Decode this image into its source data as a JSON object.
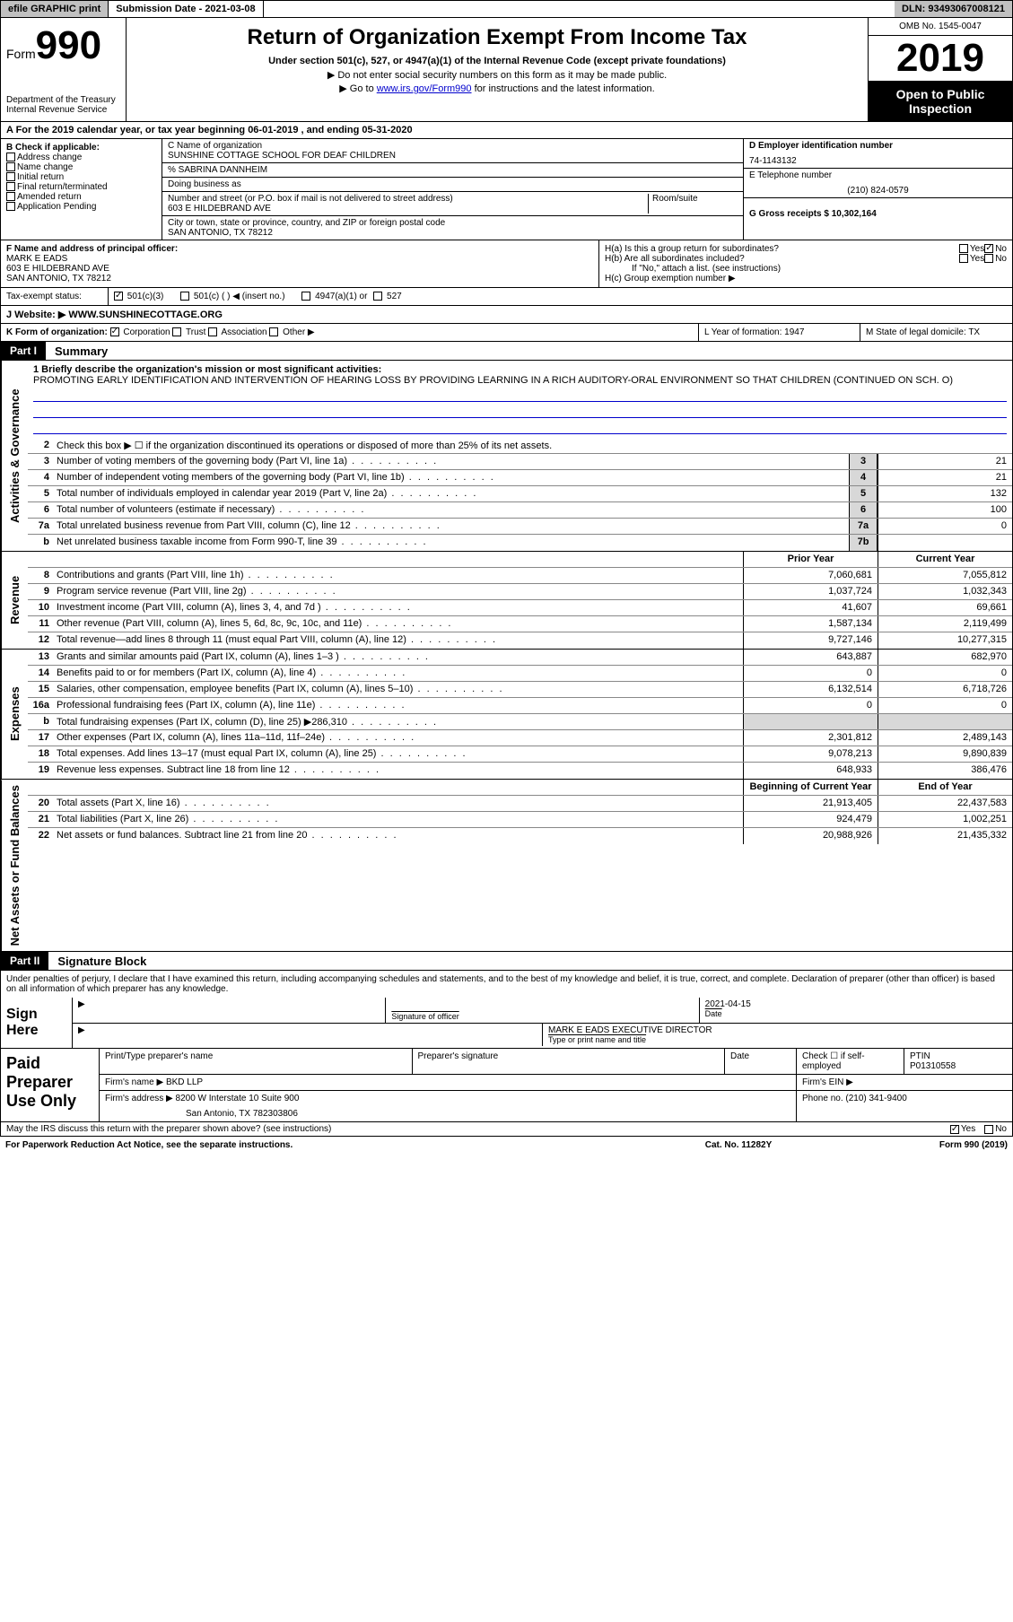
{
  "topbar": {
    "efile": "efile GRAPHIC print",
    "subdate_label": "Submission Date - 2021-03-08",
    "dln": "DLN: 93493067008121"
  },
  "header": {
    "form_prefix": "Form",
    "form_num": "990",
    "dept": "Department of the Treasury\nInternal Revenue Service",
    "title": "Return of Organization Exempt From Income Tax",
    "sub": "Under section 501(c), 527, or 4947(a)(1) of the Internal Revenue Code (except private foundations)",
    "note1": "▶ Do not enter social security numbers on this form as it may be made public.",
    "note2_pre": "▶ Go to ",
    "note2_link": "www.irs.gov/Form990",
    "note2_post": " for instructions and the latest information.",
    "omb": "OMB No. 1545-0047",
    "year": "2019",
    "open": "Open to Public Inspection"
  },
  "taxyear": "A For the 2019 calendar year, or tax year beginning 06-01-2019     , and ending 05-31-2020",
  "sectionB": {
    "hd": "B Check if applicable:",
    "items": [
      "Address change",
      "Name change",
      "Initial return",
      "Final return/terminated",
      "Amended return",
      "Application Pending"
    ]
  },
  "sectionC": {
    "name_lbl": "C Name of organization",
    "name": "SUNSHINE COTTAGE SCHOOL FOR DEAF CHILDREN",
    "care": "% SABRINA DANNHEIM",
    "dba": "Doing business as",
    "addr_lbl": "Number and street (or P.O. box if mail is not delivered to street address)",
    "addr": "603 E HILDEBRAND AVE",
    "room_lbl": "Room/suite",
    "city_lbl": "City or town, state or province, country, and ZIP or foreign postal code",
    "city": "SAN ANTONIO, TX  78212"
  },
  "sectionD": {
    "ein_lbl": "D Employer identification number",
    "ein": "74-1143132",
    "tel_lbl": "E Telephone number",
    "tel": "(210) 824-0579",
    "gross_lbl": "G Gross receipts $ 10,302,164"
  },
  "sectionF": {
    "lbl": "F  Name and address of principal officer:",
    "name": "MARK E EADS",
    "addr1": "603 E HILDEBRAND AVE",
    "addr2": "SAN ANTONIO, TX  78212"
  },
  "sectionH": {
    "a": "H(a)  Is this a group return for subordinates?",
    "b": "H(b)  Are all subordinates included?",
    "bnote": "If \"No,\" attach a list. (see instructions)",
    "c": "H(c)  Group exemption number ▶",
    "yes": "Yes",
    "no": "No"
  },
  "sectionI": {
    "lbl": "Tax-exempt status:",
    "opts": [
      "501(c)(3)",
      "501(c) (  ) ◀ (insert no.)",
      "4947(a)(1) or",
      "527"
    ]
  },
  "sectionJ": {
    "lbl": "J   Website: ▶",
    "val": "WWW.SUNSHINECOTTAGE.ORG"
  },
  "sectionK": {
    "lbl": "K Form of organization:",
    "opts": [
      "Corporation",
      "Trust",
      "Association",
      "Other ▶"
    ],
    "L": "L Year of formation: 1947",
    "M": "M State of legal domicile: TX"
  },
  "part1": {
    "label": "Part I",
    "title": "Summary",
    "mission_lbl": "1  Briefly describe the organization's mission or most significant activities:",
    "mission": "PROMOTING EARLY IDENTIFICATION AND INTERVENTION OF HEARING LOSS BY PROVIDING LEARNING IN A RICH AUDITORY-ORAL ENVIRONMENT SO THAT CHILDREN (CONTINUED ON SCH. O)",
    "line2": "Check this box ▶ ☐  if the organization discontinued its operations or disposed of more than 25% of its net assets.",
    "vtab_act": "Activities & Governance",
    "vtab_rev": "Revenue",
    "vtab_exp": "Expenses",
    "vtab_net": "Net Assets or Fund Balances",
    "prior_hd": "Prior Year",
    "curr_hd": "Current Year",
    "boy_hd": "Beginning of Current Year",
    "eoy_hd": "End of Year"
  },
  "activities": [
    {
      "n": "3",
      "d": "Number of voting members of the governing body (Part VI, line 1a)",
      "lbl": "3",
      "v": "21"
    },
    {
      "n": "4",
      "d": "Number of independent voting members of the governing body (Part VI, line 1b)",
      "lbl": "4",
      "v": "21"
    },
    {
      "n": "5",
      "d": "Total number of individuals employed in calendar year 2019 (Part V, line 2a)",
      "lbl": "5",
      "v": "132"
    },
    {
      "n": "6",
      "d": "Total number of volunteers (estimate if necessary)",
      "lbl": "6",
      "v": "100"
    },
    {
      "n": "7a",
      "d": "Total unrelated business revenue from Part VIII, column (C), line 12",
      "lbl": "7a",
      "v": "0"
    },
    {
      "n": "b",
      "d": "Net unrelated business taxable income from Form 990-T, line 39",
      "lbl": "7b",
      "v": ""
    }
  ],
  "revenue": [
    {
      "n": "8",
      "d": "Contributions and grants (Part VIII, line 1h)",
      "p": "7,060,681",
      "c": "7,055,812"
    },
    {
      "n": "9",
      "d": "Program service revenue (Part VIII, line 2g)",
      "p": "1,037,724",
      "c": "1,032,343"
    },
    {
      "n": "10",
      "d": "Investment income (Part VIII, column (A), lines 3, 4, and 7d )",
      "p": "41,607",
      "c": "69,661"
    },
    {
      "n": "11",
      "d": "Other revenue (Part VIII, column (A), lines 5, 6d, 8c, 9c, 10c, and 11e)",
      "p": "1,587,134",
      "c": "2,119,499"
    },
    {
      "n": "12",
      "d": "Total revenue—add lines 8 through 11 (must equal Part VIII, column (A), line 12)",
      "p": "9,727,146",
      "c": "10,277,315"
    }
  ],
  "expenses": [
    {
      "n": "13",
      "d": "Grants and similar amounts paid (Part IX, column (A), lines 1–3 )",
      "p": "643,887",
      "c": "682,970"
    },
    {
      "n": "14",
      "d": "Benefits paid to or for members (Part IX, column (A), line 4)",
      "p": "0",
      "c": "0"
    },
    {
      "n": "15",
      "d": "Salaries, other compensation, employee benefits (Part IX, column (A), lines 5–10)",
      "p": "6,132,514",
      "c": "6,718,726"
    },
    {
      "n": "16a",
      "d": "Professional fundraising fees (Part IX, column (A), line 11e)",
      "p": "0",
      "c": "0"
    },
    {
      "n": "b",
      "d": "Total fundraising expenses (Part IX, column (D), line 25) ▶286,310",
      "p": "__gray__",
      "c": "__gray__"
    },
    {
      "n": "17",
      "d": "Other expenses (Part IX, column (A), lines 11a–11d, 11f–24e)",
      "p": "2,301,812",
      "c": "2,489,143"
    },
    {
      "n": "18",
      "d": "Total expenses. Add lines 13–17 (must equal Part IX, column (A), line 25)",
      "p": "9,078,213",
      "c": "9,890,839"
    },
    {
      "n": "19",
      "d": "Revenue less expenses. Subtract line 18 from line 12",
      "p": "648,933",
      "c": "386,476"
    }
  ],
  "netassets": [
    {
      "n": "20",
      "d": "Total assets (Part X, line 16)",
      "p": "21,913,405",
      "c": "22,437,583"
    },
    {
      "n": "21",
      "d": "Total liabilities (Part X, line 26)",
      "p": "924,479",
      "c": "1,002,251"
    },
    {
      "n": "22",
      "d": "Net assets or fund balances. Subtract line 21 from line 20",
      "p": "20,988,926",
      "c": "21,435,332"
    }
  ],
  "part2": {
    "label": "Part II",
    "title": "Signature Block"
  },
  "sigpenal": "Under penalties of perjury, I declare that I have examined this return, including accompanying schedules and statements, and to the best of my knowledge and belief, it is true, correct, and complete. Declaration of preparer (other than officer) is based on all information of which preparer has any knowledge.",
  "sign": {
    "label": "Sign Here",
    "sig_lbl": "Signature of officer",
    "date": "2021-04-15",
    "date_lbl": "Date",
    "name": "MARK E EADS  EXECUTIVE DIRECTOR",
    "name_lbl": "Type or print name and title"
  },
  "preparer": {
    "label": "Paid Preparer Use Only",
    "name_lbl": "Print/Type preparer's name",
    "sig_lbl": "Preparer's signature",
    "date_lbl": "Date",
    "check_lbl": "Check ☐ if self-employed",
    "ptin_lbl": "PTIN",
    "ptin": "P01310558",
    "firm_lbl": "Firm's name     ▶",
    "firm": "BKD LLP",
    "ein_lbl": "Firm's EIN ▶",
    "addr_lbl": "Firm's address ▶",
    "addr": "8200 W Interstate 10 Suite 900",
    "city": "San Antonio, TX  782303806",
    "phone_lbl": "Phone no. (210) 341-9400"
  },
  "bottomq": "May the IRS discuss this return with the preparer shown above? (see instructions)",
  "footer": {
    "left": "For Paperwork Reduction Act Notice, see the separate instructions.",
    "mid": "Cat. No. 11282Y",
    "right": "Form 990 (2019)"
  }
}
